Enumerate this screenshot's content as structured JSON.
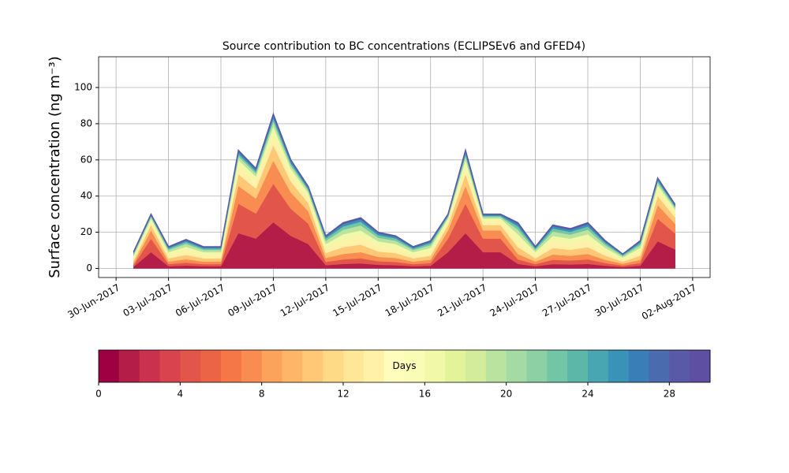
{
  "chart_data": {
    "type": "stacked_area",
    "title": "Source contribution to BC concentrations (ECLIPSEv6 and GFED4)",
    "y_label": "Surface concentration (ng m⁻³)",
    "x": [
      "01-Jul-2017",
      "02-Jul-2017",
      "03-Jul-2017",
      "04-Jul-2017",
      "05-Jul-2017",
      "06-Jul-2017",
      "07-Jul-2017",
      "08-Jul-2017",
      "09-Jul-2017",
      "10-Jul-2017",
      "11-Jul-2017",
      "12-Jul-2017",
      "13-Jul-2017",
      "14-Jul-2017",
      "15-Jul-2017",
      "16-Jul-2017",
      "17-Jul-2017",
      "18-Jul-2017",
      "19-Jul-2017",
      "20-Jul-2017",
      "21-Jul-2017",
      "22-Jul-2017",
      "23-Jul-2017",
      "24-Jul-2017",
      "25-Jul-2017",
      "26-Jul-2017",
      "27-Jul-2017",
      "28-Jul-2017",
      "29-Jul-2017",
      "30-Jul-2017",
      "31-Jul-2017",
      "01-Aug-2017"
    ],
    "xlim": [
      "29-Jun-2017",
      "03-Aug-2017"
    ],
    "xticks": [
      "30-Jun-2017",
      "03-Jul-2017",
      "06-Jul-2017",
      "09-Jul-2017",
      "12-Jul-2017",
      "15-Jul-2017",
      "18-Jul-2017",
      "21-Jul-2017",
      "24-Jul-2017",
      "27-Jul-2017",
      "30-Jul-2017",
      "02-Aug-2017"
    ],
    "ylim": [
      -5,
      117
    ],
    "yticks": [
      0,
      20,
      40,
      60,
      80,
      100
    ],
    "grid": true,
    "series": [
      {
        "color": "#b41d47",
        "values": [
          0.9,
          9,
          1.2,
          1.6,
          1.2,
          1.2,
          19.5,
          16.5,
          25.5,
          18,
          13.5,
          1.8,
          2.5,
          2.8,
          2,
          1.8,
          1.2,
          1.5,
          9,
          19.5,
          9,
          9,
          2.5,
          1.2,
          2.4,
          2.2,
          2.5,
          1.5,
          0.8,
          1.5,
          15,
          10.5
        ]
      },
      {
        "color": "#e2554a",
        "values": [
          0.9,
          7.5,
          1.2,
          1.6,
          1.2,
          1.2,
          16.3,
          13.8,
          21.3,
          15,
          11.3,
          1.8,
          2.5,
          2.8,
          2,
          1.8,
          1.2,
          1.5,
          7.5,
          16.3,
          7.5,
          7.5,
          2.5,
          1.2,
          2.4,
          2.2,
          2.5,
          1.5,
          0.8,
          1.5,
          12.5,
          8.8
        ]
      },
      {
        "color": "#f88c51",
        "values": [
          1.1,
          4.5,
          1.4,
          1.9,
          1.4,
          1.4,
          9.8,
          8.3,
          12.8,
          9,
          6.8,
          2.2,
          3,
          3.4,
          2.4,
          2.2,
          1.4,
          1.8,
          4.5,
          9.8,
          4.5,
          4.5,
          3,
          1.4,
          2.9,
          2.6,
          3,
          1.8,
          1,
          1.8,
          7.5,
          5.3
        ]
      },
      {
        "color": "#fec877",
        "values": [
          1.4,
          3,
          1.8,
          2.4,
          1.8,
          1.8,
          6.5,
          5.5,
          8.5,
          6,
          4.5,
          2.7,
          3.8,
          4.2,
          3,
          2.7,
          1.8,
          2.3,
          3,
          6.5,
          3,
          3,
          3.8,
          1.8,
          3.6,
          3.3,
          3.8,
          2.3,
          1.2,
          2.3,
          5,
          3.5
        ]
      },
      {
        "color": "#fff2a8",
        "values": [
          1.4,
          2.1,
          1.8,
          2.4,
          1.8,
          1.8,
          4.6,
          3.9,
          6,
          4.2,
          3.2,
          2.7,
          3.8,
          4.2,
          3,
          2.7,
          1.8,
          2.3,
          2.1,
          4.6,
          2.1,
          2.1,
          3.8,
          1.8,
          3.6,
          3.3,
          3.8,
          2.3,
          1.2,
          2.3,
          3.5,
          2.5
        ]
      },
      {
        "color": "#f1f9a9",
        "values": [
          1.2,
          1.5,
          1.6,
          2.1,
          1.6,
          1.6,
          3.3,
          2.8,
          4.3,
          3,
          2.3,
          2.3,
          3.3,
          3.6,
          2.6,
          2.3,
          1.6,
          2,
          1.5,
          3.3,
          1.5,
          1.5,
          3.3,
          1.6,
          3.1,
          2.9,
          3.3,
          2,
          1,
          2,
          2.5,
          1.8
        ]
      },
      {
        "color": "#bbe3a0",
        "values": [
          0.9,
          0.9,
          1.2,
          1.6,
          1.2,
          1.2,
          2,
          1.7,
          2.6,
          1.8,
          1.4,
          1.8,
          2.5,
          2.8,
          2,
          1.8,
          1.2,
          1.5,
          0.9,
          2,
          0.9,
          0.9,
          2.5,
          1.2,
          2.4,
          2.2,
          2.5,
          1.5,
          0.8,
          1.5,
          1.5,
          1.1
        ]
      },
      {
        "color": "#73c6a5",
        "values": [
          0.6,
          0.6,
          0.8,
          1.1,
          0.8,
          0.8,
          1.3,
          1.1,
          1.7,
          1.2,
          0.9,
          1.3,
          1.8,
          2,
          1.4,
          1.3,
          0.8,
          1.1,
          0.6,
          1.3,
          0.6,
          0.6,
          1.8,
          0.8,
          1.7,
          1.5,
          1.8,
          1.1,
          0.6,
          1.1,
          1,
          0.7
        ]
      },
      {
        "color": "#3993b8",
        "values": [
          0.5,
          0.6,
          0.6,
          0.8,
          0.6,
          0.6,
          1.3,
          1.1,
          1.7,
          1.2,
          0.9,
          0.9,
          1.3,
          1.4,
          1,
          0.9,
          0.6,
          0.8,
          0.6,
          1.3,
          0.6,
          0.6,
          1.3,
          0.6,
          1.2,
          1.1,
          1.3,
          0.8,
          0.4,
          0.8,
          1,
          0.7
        ]
      },
      {
        "color": "#5a59a8",
        "values": [
          0.3,
          0.3,
          0.4,
          0.5,
          0.4,
          0.4,
          0.7,
          0.6,
          0.9,
          0.6,
          0.5,
          0.5,
          0.8,
          0.8,
          0.6,
          0.5,
          0.4,
          0.5,
          0.3,
          0.7,
          0.3,
          0.3,
          0.8,
          0.4,
          0.7,
          0.7,
          0.8,
          0.5,
          0.2,
          0.5,
          0.5,
          0.4
        ]
      }
    ],
    "colorbar": {
      "label": "Days",
      "lim": [
        0,
        30
      ],
      "ticks": [
        0,
        4,
        8,
        12,
        16,
        20,
        24,
        28
      ],
      "colors": [
        "#9e0142",
        "#b41d47",
        "#c9314c",
        "#d8434e",
        "#e2554a",
        "#ec6446",
        "#f57748",
        "#f88c51",
        "#fba25b",
        "#fdb567",
        "#fec877",
        "#fed986",
        "#fee796",
        "#fff2a8",
        "#fffdbc",
        "#f9fcb4",
        "#f1f9a9",
        "#e3f399",
        "#d2ec9b",
        "#bbe3a0",
        "#a4daa4",
        "#8cd0a4",
        "#73c6a5",
        "#5cb7a9",
        "#48a6b2",
        "#3993b8",
        "#3a7eb8",
        "#4a6cae",
        "#5a59a8",
        "#5e4fa2"
      ]
    }
  }
}
